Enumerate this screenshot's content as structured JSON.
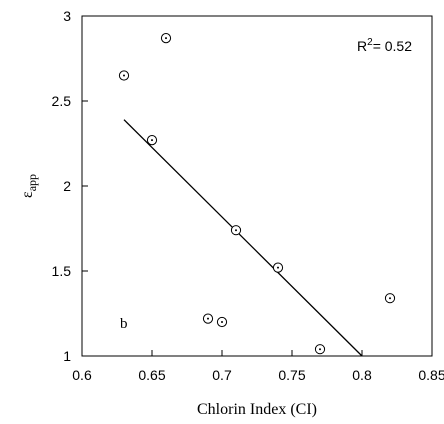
{
  "chart_data": {
    "type": "scatter",
    "xlabel": "Chlorin Index (CI)",
    "ylabel_main": "ε",
    "ylabel_sub": "app",
    "xlim": [
      0.6,
      0.85
    ],
    "ylim": [
      1,
      3
    ],
    "xticks": [
      0.6,
      0.65,
      0.7,
      0.75,
      0.8,
      0.85
    ],
    "xtick_labels": [
      "0.6",
      "0.65",
      "0.7",
      "0.75",
      "0.8",
      "0.85"
    ],
    "yticks": [
      1,
      1.5,
      2,
      2.5,
      3
    ],
    "ytick_labels": [
      "1",
      "1.5",
      "2",
      "2.5",
      "3"
    ],
    "points": [
      {
        "x": 0.63,
        "y": 2.65
      },
      {
        "x": 0.66,
        "y": 2.87
      },
      {
        "x": 0.65,
        "y": 2.27
      },
      {
        "x": 0.71,
        "y": 1.74
      },
      {
        "x": 0.74,
        "y": 1.52
      },
      {
        "x": 0.69,
        "y": 1.22
      },
      {
        "x": 0.7,
        "y": 1.2
      },
      {
        "x": 0.77,
        "y": 1.04
      },
      {
        "x": 0.82,
        "y": 1.34
      }
    ],
    "fit_line": {
      "x": [
        0.63,
        0.8
      ],
      "y": [
        2.39,
        1.0
      ]
    },
    "r2_prefix": "R",
    "r2_sup": "2",
    "r2_value": "= 0.52",
    "panel_label": "b",
    "grid": false
  }
}
